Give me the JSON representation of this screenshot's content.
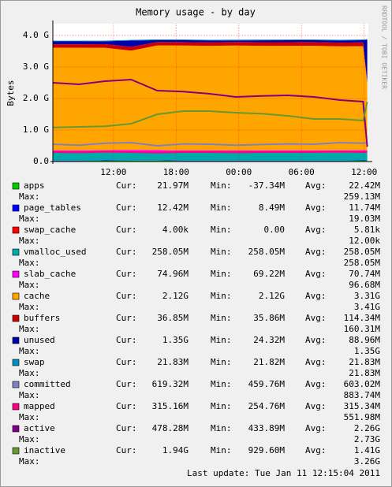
{
  "chart_data": {
    "type": "area",
    "title": "Memory usage - by day",
    "y_label": "Bytes",
    "side_text": "RRDTOOL / TOBI OETIKER",
    "last_update": "Last update: Tue Jan 11 12:15:04 2011",
    "stat_labels": [
      "Cur:",
      "Min:",
      "Avg:",
      "Max:"
    ],
    "grid": true,
    "x": [
      6.2,
      8.7,
      11.2,
      13.7,
      16.2,
      18.7,
      21.2,
      23.7,
      26.2,
      28.7,
      31.2,
      33.7,
      35.9,
      36.3
    ],
    "xlim": [
      6.2,
      36.4
    ],
    "xticks": [
      {
        "value": 12,
        "label": "12:00"
      },
      {
        "value": 18,
        "label": "18:00"
      },
      {
        "value": 24,
        "label": "00:00"
      },
      {
        "value": 30,
        "label": "06:00"
      },
      {
        "value": 36,
        "label": "12:00"
      }
    ],
    "ylim": [
      0,
      4.375
    ],
    "yticks": [
      {
        "value": 0,
        "label": "0.0"
      },
      {
        "value": 1,
        "label": "1.0 G"
      },
      {
        "value": 2,
        "label": "2.0 G"
      },
      {
        "value": 3,
        "label": "3.0 G"
      },
      {
        "value": 4,
        "label": "4.0 G"
      }
    ],
    "series": [
      {
        "name": "apps",
        "style": "area",
        "color": "#00cc00",
        "values": [
          0.02,
          0.02,
          0.025,
          0.03,
          0.03,
          0.02,
          0.02,
          0.02,
          0.02,
          0.02,
          0.02,
          0.02,
          0.025,
          0.021
        ],
        "cur": "21.97M",
        "min": "-37.34M",
        "avg": "22.42M",
        "max": "259.13M"
      },
      {
        "name": "page_tables",
        "style": "area",
        "color": "#0000ff",
        "values": [
          0.011,
          0.011,
          0.011,
          0.011,
          0.011,
          0.011,
          0.011,
          0.011,
          0.011,
          0.011,
          0.011,
          0.011,
          0.011,
          0.012
        ],
        "cur": "12.42M",
        "min": "8.49M",
        "avg": "11.74M",
        "max": "19.03M"
      },
      {
        "name": "swap_cache",
        "style": "area",
        "color": "#ff0000",
        "values": [
          0,
          0,
          0,
          0,
          0,
          0,
          0,
          0,
          0,
          0,
          0,
          0,
          0,
          0
        ],
        "cur": "4.00k",
        "min": "0.00",
        "avg": "5.81k",
        "max": "12.00k"
      },
      {
        "name": "vmalloc_used",
        "style": "area",
        "color": "#00aaaa",
        "values": [
          0.252,
          0.252,
          0.252,
          0.252,
          0.252,
          0.252,
          0.252,
          0.252,
          0.252,
          0.252,
          0.252,
          0.252,
          0.252,
          0.252
        ],
        "cur": "258.05M",
        "min": "258.05M",
        "avg": "258.05M",
        "max": "258.05M"
      },
      {
        "name": "slab_cache",
        "style": "area",
        "color": "#ff00ff",
        "values": [
          0.07,
          0.07,
          0.072,
          0.075,
          0.07,
          0.068,
          0.068,
          0.068,
          0.07,
          0.07,
          0.07,
          0.072,
          0.072,
          0.073
        ],
        "cur": "74.96M",
        "min": "69.22M",
        "avg": "70.74M",
        "max": "96.68M"
      },
      {
        "name": "cache",
        "style": "area",
        "color": "#ffa500",
        "values": [
          3.26,
          3.26,
          3.25,
          3.15,
          3.32,
          3.33,
          3.32,
          3.33,
          3.32,
          3.32,
          3.32,
          3.3,
          3.3,
          2.12
        ],
        "cur": "2.12G",
        "min": "2.12G",
        "avg": "3.31G",
        "max": "3.41G"
      },
      {
        "name": "buffers",
        "style": "area",
        "color": "#cc0000",
        "values": [
          0.11,
          0.11,
          0.115,
          0.12,
          0.11,
          0.11,
          0.112,
          0.113,
          0.115,
          0.116,
          0.117,
          0.118,
          0.12,
          0.036
        ],
        "cur": "36.85M",
        "min": "35.86M",
        "avg": "114.34M",
        "max": "160.31M"
      },
      {
        "name": "unused",
        "style": "area",
        "color": "#0000aa",
        "values": [
          0.09,
          0.09,
          0.09,
          0.2,
          0.06,
          0.06,
          0.06,
          0.05,
          0.06,
          0.06,
          0.06,
          0.07,
          0.07,
          1.35
        ],
        "cur": "1.35G",
        "min": "24.32M",
        "avg": "88.96M",
        "max": "1.35G"
      },
      {
        "name": "swap",
        "style": "area",
        "color": "#008fbf",
        "values": [
          0.021,
          0.021,
          0.021,
          0.021,
          0.021,
          0.021,
          0.021,
          0.021,
          0.021,
          0.021,
          0.021,
          0.021,
          0.021,
          0.021
        ],
        "cur": "21.83M",
        "min": "21.82M",
        "avg": "21.83M",
        "max": "21.83M"
      },
      {
        "name": "committed",
        "style": "line",
        "color": "#8080c0",
        "values": [
          0.55,
          0.52,
          0.58,
          0.6,
          0.5,
          0.56,
          0.55,
          0.52,
          0.54,
          0.56,
          0.55,
          0.6,
          0.58,
          0.605
        ],
        "cur": "619.32M",
        "min": "459.76M",
        "avg": "603.02M",
        "max": "883.74M"
      },
      {
        "name": "mapped",
        "style": "line",
        "color": "#ff0080",
        "values": [
          0.3,
          0.29,
          0.31,
          0.3,
          0.28,
          0.3,
          0.3,
          0.29,
          0.3,
          0.3,
          0.3,
          0.31,
          0.3,
          0.308
        ],
        "cur": "315.16M",
        "min": "254.76M",
        "avg": "315.34M",
        "max": "551.98M"
      },
      {
        "name": "active",
        "style": "line",
        "color": "#800080",
        "values": [
          2.5,
          2.45,
          2.55,
          2.6,
          2.25,
          2.22,
          2.15,
          2.05,
          2.08,
          2.1,
          2.05,
          1.95,
          1.9,
          0.467
        ],
        "cur": "478.28M",
        "min": "433.89M",
        "avg": "2.26G",
        "max": "2.73G"
      },
      {
        "name": "inactive",
        "style": "line",
        "color": "#669933",
        "values": [
          1.08,
          1.1,
          1.12,
          1.2,
          1.5,
          1.6,
          1.6,
          1.55,
          1.52,
          1.45,
          1.35,
          1.35,
          1.3,
          1.89
        ],
        "cur": "1.94G",
        "min": "929.60M",
        "avg": "1.41G",
        "max": "3.26G"
      }
    ]
  }
}
